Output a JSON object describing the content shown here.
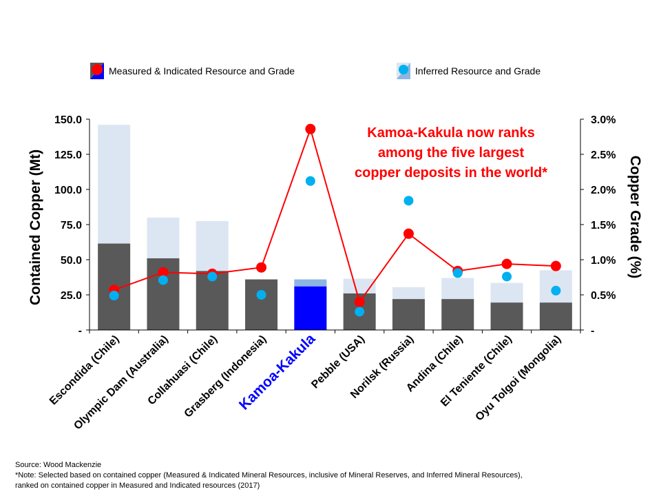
{
  "chart_data": {
    "type": "bar",
    "categories": [
      "Escondida (Chile)",
      "Olympic Dam (Australia)",
      "Collahuasi (Chile)",
      "Grasberg (Indonesia)",
      "Kamoa-Kakula",
      "Pebble (USA)",
      "Norilsk (Russia)",
      "Andina (Chile)",
      "El Teniente (Chile)",
      "Oyu Tolgoi (Mongolia)"
    ],
    "highlight_category": "Kamoa-Kakula",
    "series": [
      {
        "name": "Measured & Indicated Resource",
        "type": "bar-stacked",
        "values": [
          61.5,
          51,
          42,
          36,
          31,
          26,
          22,
          22,
          19.5,
          19.5
        ]
      },
      {
        "name": "Inferred Resource",
        "type": "bar-stacked",
        "values": [
          84.5,
          29,
          35.5,
          0,
          5,
          10.5,
          8.5,
          15,
          14,
          23
        ]
      },
      {
        "name": "Measured & Indicated Grade",
        "type": "line",
        "axis": "right",
        "values": [
          0.57,
          0.82,
          0.8,
          0.89,
          2.86,
          0.4,
          1.37,
          0.84,
          0.94,
          0.91
        ]
      },
      {
        "name": "Inferred Grade",
        "type": "scatter",
        "axis": "right",
        "values": [
          0.49,
          0.71,
          0.76,
          0.5,
          2.12,
          0.26,
          1.84,
          0.81,
          0.76,
          0.56
        ]
      }
    ],
    "ylabel": "Contained Copper (Mt)",
    "ylim": [
      0,
      150
    ],
    "yticks": [
      "-",
      "25.0",
      "50.0",
      "75.0",
      "100.0",
      "125.0",
      "150.0"
    ],
    "y2label": "Copper Grade (%)",
    "y2lim": [
      0,
      3.0
    ],
    "y2ticks": [
      "-",
      "0.5%",
      "1.0%",
      "1.5%",
      "2.0%",
      "2.5%",
      "3.0%"
    ],
    "legend": {
      "placement": "top",
      "mi_label": "Measured & Indicated Resource and Grade",
      "inf_label": "Inferred Resource and Grade"
    },
    "annotation": [
      "Kamoa-Kakula now ranks",
      "among the five largest",
      "copper deposits in the world*"
    ],
    "colors": {
      "mi_bar": "#595959",
      "inf_bar": "#dce6f2",
      "highlight_mi_bar": "#0000ff",
      "highlight_inf_bar": "#8db4e2",
      "mi_line": "#ff0000",
      "inf_dot": "#00b0f0",
      "annotation": "#ff0000"
    }
  },
  "footer": {
    "source": "Source: Wood Mackenzie",
    "note_line1": "*Note: Selected based on contained copper (Measured & Indicated Mineral Resources, inclusive of Mineral Reserves, and Inferred Mineral Resources),",
    "note_line2": "ranked on contained copper in Measured and Indicated resources (2017)"
  }
}
